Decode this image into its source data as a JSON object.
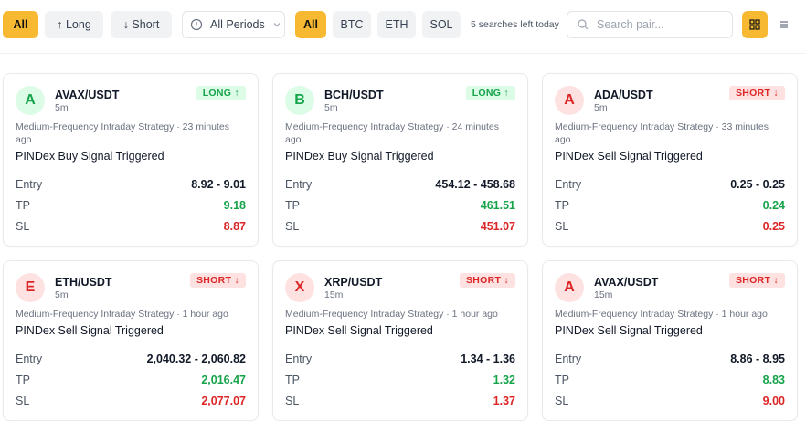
{
  "toolbar": {
    "direction_filters": [
      "All",
      "↑ Long",
      "↓ Short"
    ],
    "period": "All Periods",
    "asset_filters": [
      "All",
      "BTC",
      "ETH",
      "SOL"
    ],
    "searches_left": "5 searches left today",
    "search_placeholder": "Search pair..."
  },
  "cards": [
    {
      "avatar": "A",
      "pair": "AVAX/USDT",
      "timeframe": "5m",
      "badge": "LONG ↑",
      "color": "green",
      "meta": "Medium-Frequency Intraday Strategy · 23 minutes ago",
      "signal": "PINDex Buy Signal Triggered",
      "rows": [
        [
          "Entry",
          "8.92 - 9.01"
        ],
        [
          "TP",
          "9.18"
        ],
        [
          "SL",
          "8.87"
        ]
      ]
    },
    {
      "avatar": "B",
      "pair": "BCH/USDT",
      "timeframe": "5m",
      "badge": "LONG ↑",
      "color": "green",
      "meta": "Medium-Frequency Intraday Strategy · 24 minutes ago",
      "signal": "PINDex Buy Signal Triggered",
      "rows": [
        [
          "Entry",
          "454.12 - 458.68"
        ],
        [
          "TP",
          "461.51"
        ],
        [
          "SL",
          "451.07"
        ]
      ]
    },
    {
      "avatar": "A",
      "pair": "ADA/USDT",
      "timeframe": "5m",
      "badge": "SHORT ↓",
      "color": "red",
      "meta": "Medium-Frequency Intraday Strategy · 33 minutes ago",
      "signal": "PINDex Sell Signal Triggered",
      "rows": [
        [
          "Entry",
          "0.25 - 0.25"
        ],
        [
          "TP",
          "0.24"
        ],
        [
          "SL",
          "0.25"
        ]
      ]
    },
    {
      "avatar": "E",
      "pair": "ETH/USDT",
      "timeframe": "5m",
      "badge": "SHORT ↓",
      "color": "red",
      "meta": "Medium-Frequency Intraday Strategy · 1 hour ago",
      "signal": "PINDex Sell Signal Triggered",
      "rows": [
        [
          "Entry",
          "2,040.32 - 2,060.82"
        ],
        [
          "TP",
          "2,016.47"
        ],
        [
          "SL",
          "2,077.07"
        ]
      ]
    },
    {
      "avatar": "X",
      "pair": "XRP/USDT",
      "timeframe": "15m",
      "badge": "SHORT ↓",
      "color": "red",
      "meta": "Medium-Frequency Intraday Strategy · 1 hour ago",
      "signal": "PINDex Sell Signal Triggered",
      "rows": [
        [
          "Entry",
          "1.34 - 1.36"
        ],
        [
          "TP",
          "1.32"
        ],
        [
          "SL",
          "1.37"
        ]
      ]
    },
    {
      "avatar": "A",
      "pair": "AVAX/USDT",
      "timeframe": "15m",
      "badge": "SHORT ↓",
      "color": "red",
      "meta": "Medium-Frequency Intraday Strategy · 1 hour ago",
      "signal": "PINDex Sell Signal Triggered",
      "rows": [
        [
          "Entry",
          "8.86 - 8.95"
        ],
        [
          "TP",
          "8.83"
        ],
        [
          "SL",
          "9.00"
        ]
      ]
    }
  ]
}
